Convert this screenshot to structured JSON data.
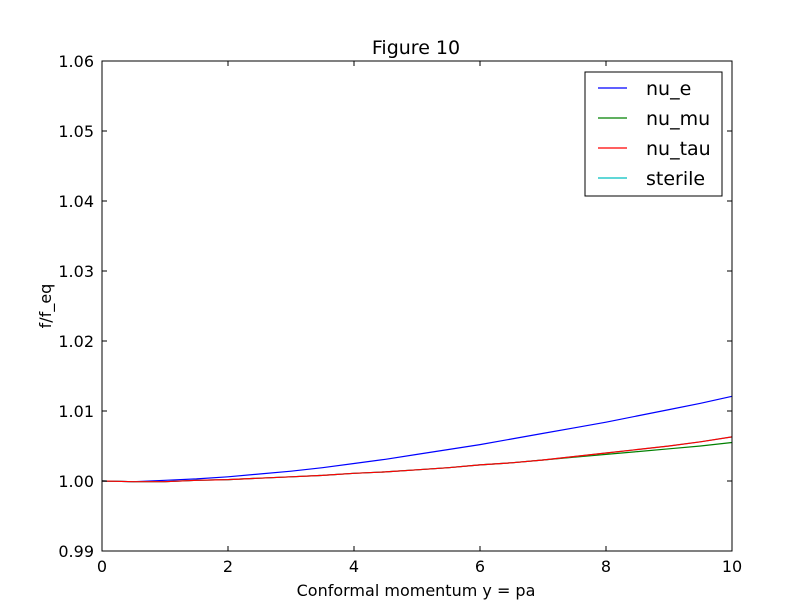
{
  "chart_data": {
    "type": "line",
    "title": "Figure 10",
    "xlabel": "Conformal momentum y = pa",
    "ylabel": "f/f_eq",
    "xlim": [
      0,
      10
    ],
    "ylim": [
      0.99,
      1.06
    ],
    "xticks": [
      0,
      2,
      4,
      6,
      8,
      10
    ],
    "xtick_labels": [
      "0",
      "2",
      "4",
      "6",
      "8",
      "10"
    ],
    "yticks": [
      0.99,
      1.0,
      1.01,
      1.02,
      1.03,
      1.04,
      1.05,
      1.06
    ],
    "ytick_labels": [
      "0.99",
      "1.00",
      "1.01",
      "1.02",
      "1.03",
      "1.04",
      "1.05",
      "1.06"
    ],
    "grid": false,
    "legend_position": "top-right",
    "x": [
      0,
      0.5,
      1,
      1.5,
      2,
      2.5,
      3,
      3.5,
      4,
      4.5,
      5,
      5.5,
      6,
      6.5,
      7,
      7.5,
      8,
      8.5,
      9,
      9.5,
      10
    ],
    "series": [
      {
        "name": "nu_e",
        "color": "#0000ff",
        "values": [
          1.0,
          0.9999,
          1.0001,
          1.0003,
          1.0006,
          1.001,
          1.0014,
          1.0019,
          1.0025,
          1.0031,
          1.0038,
          1.0045,
          1.0052,
          1.006,
          1.0068,
          1.0076,
          1.0084,
          1.0093,
          1.0102,
          1.0111,
          1.0121
        ]
      },
      {
        "name": "nu_mu",
        "color": "#008000",
        "values": [
          1.0,
          0.9999,
          0.9999,
          1.0001,
          1.0002,
          1.0004,
          1.0006,
          1.0008,
          1.0011,
          1.0013,
          1.0016,
          1.0019,
          1.0023,
          1.0026,
          1.003,
          1.0034,
          1.0038,
          1.0042,
          1.0046,
          1.005,
          1.0055
        ]
      },
      {
        "name": "nu_tau",
        "color": "#ff0000",
        "values": [
          1.0,
          0.9999,
          0.9999,
          1.0001,
          1.0002,
          1.0004,
          1.0006,
          1.0008,
          1.0011,
          1.0013,
          1.0016,
          1.0019,
          1.0023,
          1.0026,
          1.003,
          1.0035,
          1.004,
          1.0045,
          1.005,
          1.0056,
          1.0063
        ]
      },
      {
        "name": "sterile",
        "color": "#00bfbf",
        "values": [
          1.0,
          0.9999,
          0.9999,
          1.0001,
          1.0002,
          1.0004,
          1.0006,
          1.0008,
          1.0011,
          1.0013,
          1.0016,
          1.0019,
          1.0023,
          1.0026,
          1.003,
          1.0035,
          1.004,
          1.0045,
          1.005,
          1.0056,
          1.0063
        ]
      }
    ]
  }
}
